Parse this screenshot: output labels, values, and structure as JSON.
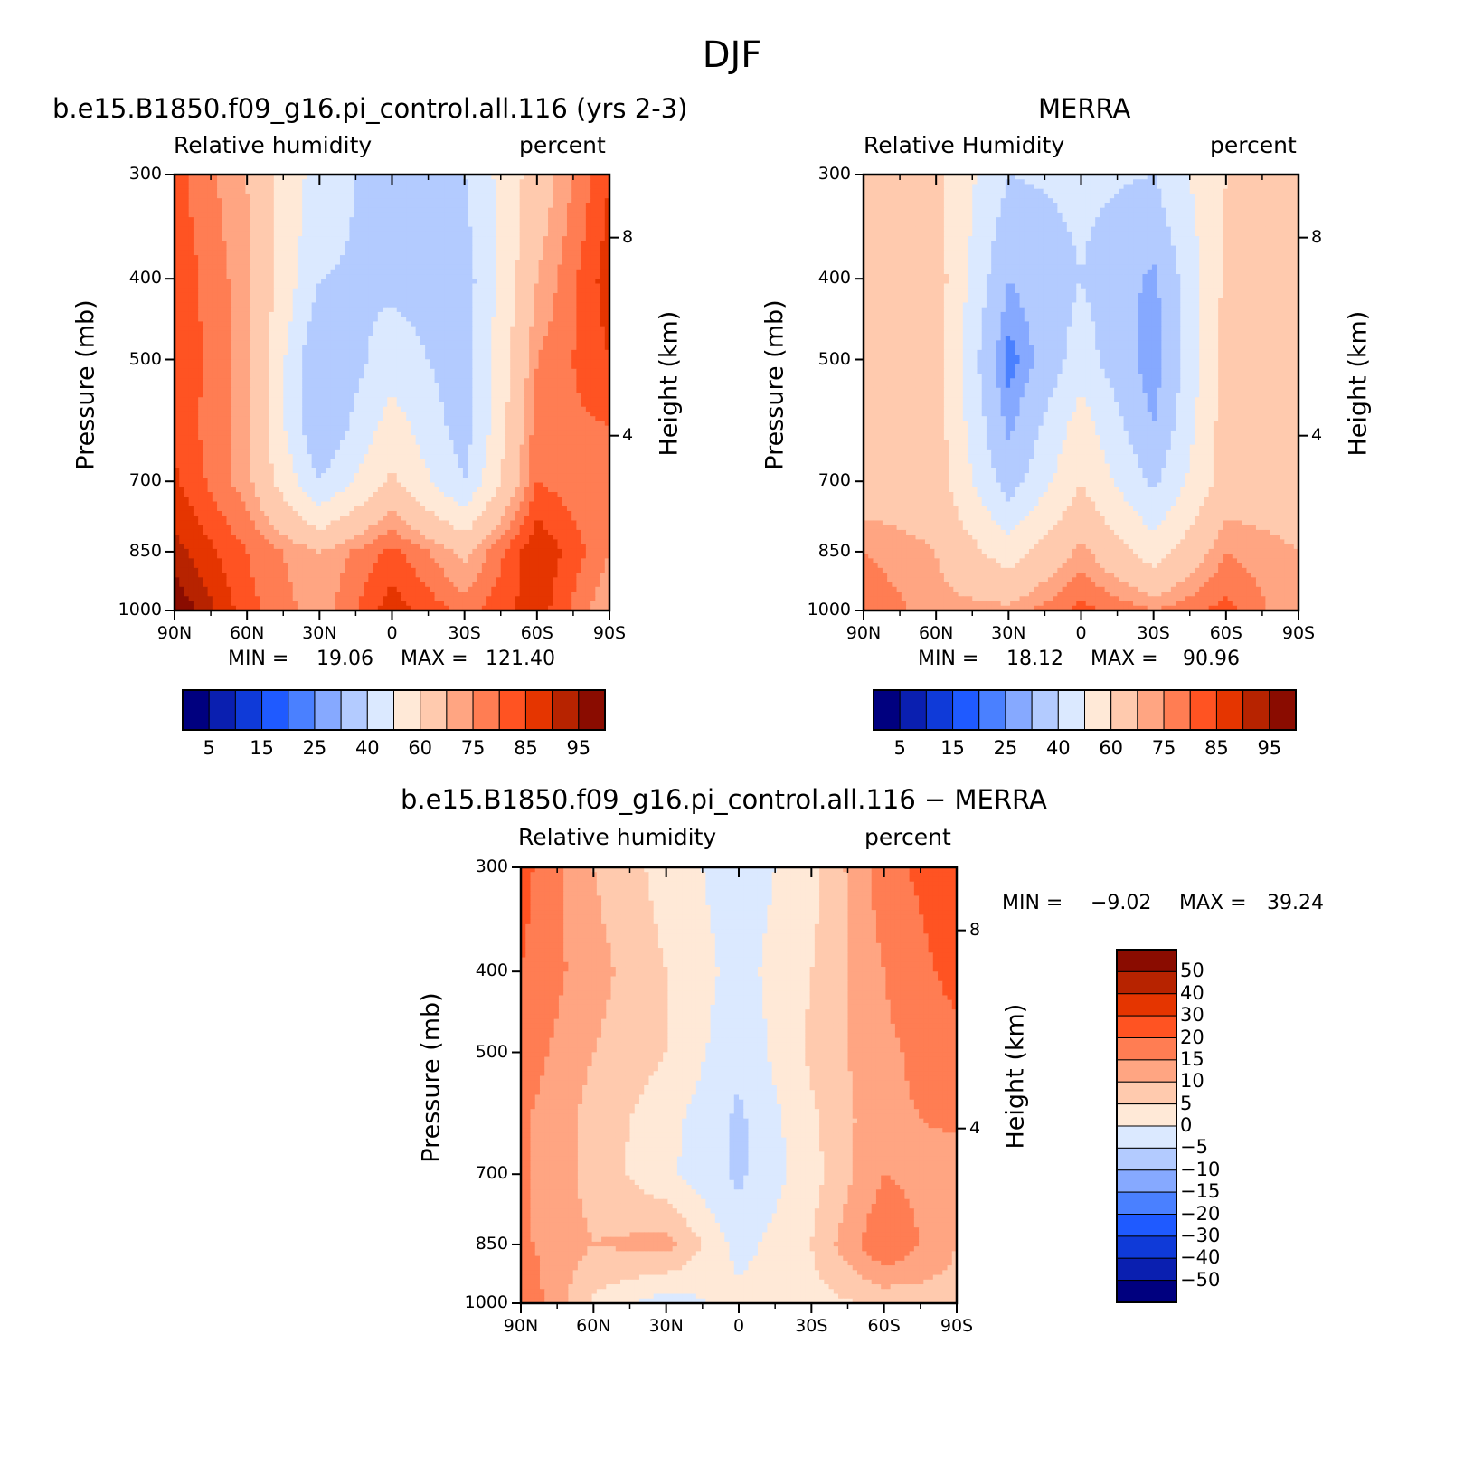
{
  "title": "DJF",
  "panels": [
    {
      "title": "b.e15.B1850.f09_g16.pi_control.all.116 (yrs 2-3)",
      "variable": "Relative humidity",
      "units": "percent",
      "ylabel": "Pressure (mb)",
      "ylabel_right": "Height (km)",
      "min_label": "MIN =",
      "min_value": "19.06",
      "max_label": "MAX =",
      "max_value": "121.40"
    },
    {
      "title": "MERRA",
      "variable": "Relative Humidity",
      "units": "percent",
      "ylabel": "Pressure (mb)",
      "ylabel_right": "Height (km)",
      "min_label": "MIN =",
      "min_value": "18.12",
      "max_label": "MAX =",
      "max_value": "90.96"
    },
    {
      "title": "b.e15.B1850.f09_g16.pi_control.all.116 − MERRA",
      "variable": "Relative humidity",
      "units": "percent",
      "ylabel": "Pressure (mb)",
      "ylabel_right": "Height (km)",
      "min_label": "MIN =",
      "min_value": "−9.02",
      "max_label": "MAX =",
      "max_value": "39.24"
    }
  ],
  "abs_colorbar": {
    "labels": [
      "5",
      "15",
      "25",
      "40",
      "60",
      "75",
      "85",
      "95"
    ],
    "colors": [
      "#00007f",
      "#0a1fb0",
      "#0f3ad8",
      "#1f5aff",
      "#4a80ff",
      "#86a9ff",
      "#b3cbff",
      "#dbe9ff",
      "#ffe9d7",
      "#ffcaae",
      "#ffa582",
      "#ff7d53",
      "#ff5322",
      "#e53500",
      "#b72300",
      "#8a0c00"
    ]
  },
  "diff_colorbar": {
    "labels": [
      "50",
      "40",
      "30",
      "20",
      "15",
      "10",
      "5",
      "0",
      "−5",
      "−10",
      "−15",
      "−20",
      "−30",
      "−40",
      "−50"
    ],
    "colors": [
      "#8a0c00",
      "#b72300",
      "#e53500",
      "#ff5322",
      "#ff7d53",
      "#ffa582",
      "#ffcaae",
      "#ffe9d7",
      "#dbe9ff",
      "#b3cbff",
      "#86a9ff",
      "#4a80ff",
      "#1f5aff",
      "#0f3ad8",
      "#0a1fb0",
      "#00007f"
    ]
  },
  "chart_data": [
    {
      "type": "heatmap",
      "title": "b.e15.B1850.f09_g16.pi_control.all.116 (yrs 2-3)",
      "xlabel": "",
      "ylabel": "Pressure (mb)",
      "x_ticks": [
        "90N",
        "60N",
        "30N",
        "0",
        "30S",
        "60S",
        "90S"
      ],
      "y_ticks": [
        300,
        400,
        500,
        700,
        850,
        1000
      ],
      "y_right_ticks": [
        8,
        4
      ],
      "latitudes": [
        90,
        60,
        30,
        0,
        -30,
        -60,
        -90
      ],
      "pressure_levels": [
        300,
        400,
        500,
        600,
        700,
        850,
        1000
      ],
      "values": [
        [
          82,
          70,
          45,
          35,
          40,
          65,
          85
        ],
        [
          84,
          72,
          40,
          38,
          35,
          70,
          88
        ],
        [
          85,
          72,
          30,
          45,
          35,
          75,
          85
        ],
        [
          84,
          72,
          30,
          55,
          35,
          78,
          80
        ],
        [
          86,
          72,
          40,
          62,
          40,
          80,
          75
        ],
        [
          92,
          80,
          70,
          82,
          68,
          90,
          75
        ],
        [
          100,
          82,
          72,
          88,
          78,
          88,
          70
        ]
      ],
      "min": 19.06,
      "max": 121.4
    },
    {
      "type": "heatmap",
      "title": "MERRA",
      "xlabel": "",
      "ylabel": "Pressure (mb)",
      "x_ticks": [
        "90N",
        "60N",
        "30N",
        "0",
        "30S",
        "60S",
        "90S"
      ],
      "y_ticks": [
        300,
        400,
        500,
        700,
        850,
        1000
      ],
      "y_right_ticks": [
        8,
        4
      ],
      "latitudes": [
        90,
        60,
        30,
        0,
        -30,
        -60,
        -90
      ],
      "pressure_levels": [
        300,
        400,
        500,
        600,
        700,
        850,
        1000
      ],
      "values": [
        [
          62,
          62,
          40,
          42,
          40,
          60,
          62
        ],
        [
          65,
          65,
          30,
          40,
          28,
          62,
          65
        ],
        [
          65,
          65,
          22,
          45,
          25,
          65,
          65
        ],
        [
          65,
          65,
          28,
          55,
          30,
          65,
          65
        ],
        [
          65,
          65,
          35,
          60,
          38,
          65,
          65
        ],
        [
          75,
          70,
          55,
          72,
          55,
          75,
          70
        ],
        [
          80,
          72,
          72,
          82,
          75,
          82,
          70
        ]
      ],
      "min": 18.12,
      "max": 90.96
    },
    {
      "type": "heatmap",
      "title": "b.e15.B1850.f09_g16.pi_control.all.116 − MERRA",
      "xlabel": "",
      "ylabel": "Pressure (mb)",
      "x_ticks": [
        "90N",
        "60N",
        "30N",
        "0",
        "30S",
        "60S",
        "90S"
      ],
      "y_ticks": [
        300,
        400,
        500,
        700,
        850,
        1000
      ],
      "y_right_ticks": [
        8,
        4
      ],
      "latitudes": [
        90,
        60,
        30,
        0,
        -30,
        -60,
        -90
      ],
      "pressure_levels": [
        300,
        400,
        500,
        600,
        700,
        850,
        1000
      ],
      "values": [
        [
          22,
          10,
          3,
          -3,
          3,
          18,
          24
        ],
        [
          20,
          12,
          5,
          -2,
          5,
          15,
          22
        ],
        [
          18,
          10,
          5,
          -4,
          6,
          14,
          18
        ],
        [
          16,
          8,
          2,
          -6,
          4,
          14,
          16
        ],
        [
          16,
          8,
          1,
          -6,
          3,
          15,
          12
        ],
        [
          16,
          10,
          12,
          -2,
          5,
          20,
          10
        ],
        [
          20,
          4,
          -3,
          2,
          3,
          6,
          8
        ]
      ],
      "min": -9.02,
      "max": 39.24
    }
  ]
}
